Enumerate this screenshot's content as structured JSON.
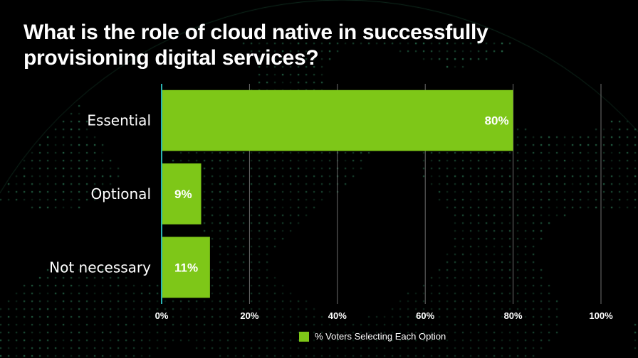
{
  "title": "What is the role of cloud native in successfully provisioning digital services?",
  "colors": {
    "bar": "#7ec718",
    "background": "#000000",
    "grid": "#8a8a8a",
    "axis": "#2ab3b3",
    "globe_dots": "#3fae7a"
  },
  "chart_data": {
    "type": "bar",
    "orientation": "horizontal",
    "categories": [
      "Essential",
      "Optional",
      "Not necessary"
    ],
    "series": [
      {
        "name": "% Voters Selecting Each Option",
        "values": [
          80,
          9,
          11
        ]
      }
    ],
    "value_labels": [
      "80%",
      "9%",
      "11%"
    ],
    "xlim": [
      0,
      100
    ],
    "xticks": [
      0,
      20,
      40,
      60,
      80,
      100
    ],
    "xtick_labels": [
      "0%",
      "20%",
      "40%",
      "60%",
      "80%",
      "100%"
    ],
    "grid": true,
    "legend_position": "bottom"
  },
  "legend": {
    "label": "% Voters Selecting Each Option"
  }
}
